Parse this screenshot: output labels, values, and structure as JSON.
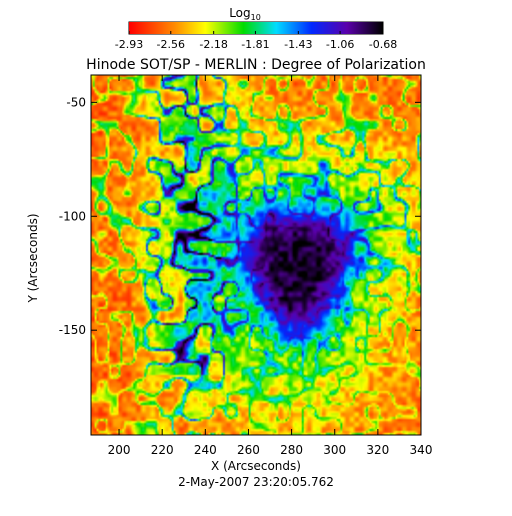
{
  "chart_data": {
    "type": "heatmap",
    "title": "Hinode SOT/SP - MERLIN : Degree of Polarization",
    "xlabel": "X (Arcseconds)",
    "ylabel": "Y (Arcseconds)",
    "timestamp": "2-May-2007 23:20:05.762",
    "xlim": [
      187,
      340
    ],
    "ylim": [
      -196,
      -38
    ],
    "xticks": [
      200,
      220,
      240,
      260,
      280,
      300,
      320,
      340
    ],
    "xtick_labels": [
      "200",
      "220",
      "240",
      "260",
      "280",
      "300",
      "320",
      "340"
    ],
    "yticks": [
      -50,
      -100,
      -150
    ],
    "ytick_labels": [
      "-50",
      "-100",
      "-150"
    ],
    "colorbar": {
      "label_base": "Log",
      "label_sub": "10",
      "range": [
        -2.93,
        -0.68
      ],
      "ticks": [
        -2.93,
        -2.56,
        -2.18,
        -1.81,
        -1.43,
        -1.06,
        -0.68
      ],
      "tick_labels": [
        "-2.93",
        "-2.56",
        "-2.18",
        "-1.81",
        "-1.43",
        "-1.06",
        "-0.68"
      ]
    },
    "features": {
      "sunspot_umbra_center": [
        283,
        -122
      ],
      "sunspot_radius_arcsec": 24,
      "background_level": -2.85,
      "umbra_level": -0.75
    },
    "grid": false,
    "legend": "none"
  }
}
